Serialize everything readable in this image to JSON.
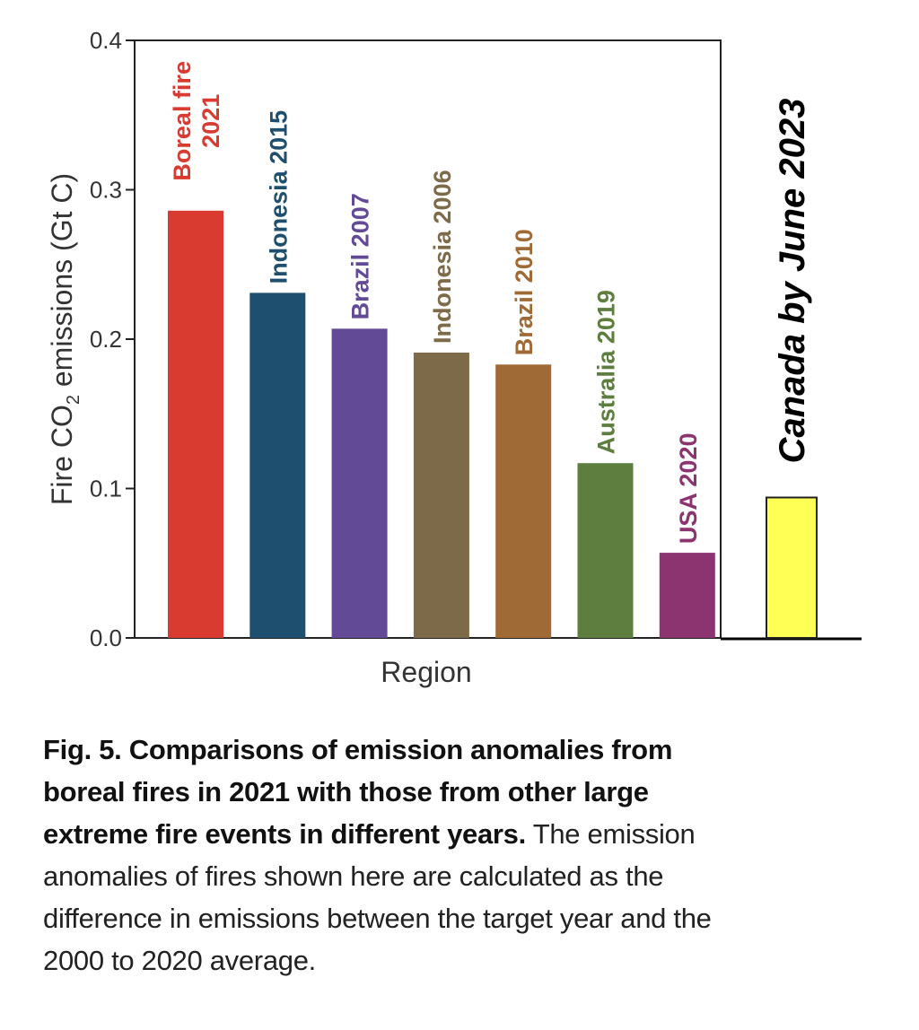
{
  "chart_data": {
    "type": "bar",
    "title": "",
    "xlabel": "Region",
    "ylabel_prefix": "Fire CO",
    "ylabel_sub": "2",
    "ylabel_suffix": " emissions (Gt C)",
    "ylim": [
      0,
      0.4
    ],
    "yticks": [
      {
        "value": 0.0,
        "label": "0.0"
      },
      {
        "value": 0.1,
        "label": "0.1"
      },
      {
        "value": 0.2,
        "label": "0.2"
      },
      {
        "value": 0.3,
        "label": "0.3"
      },
      {
        "value": 0.4,
        "label": "0.4"
      }
    ],
    "bars": [
      {
        "label_lines": [
          "Boreal fire",
          "2021"
        ],
        "value": 0.286,
        "color": "#d93b30",
        "label_color": "#d93b30"
      },
      {
        "label_lines": [
          "Indonesia 2015"
        ],
        "value": 0.231,
        "color": "#1f4f6e",
        "label_color": "#1f4f6e"
      },
      {
        "label_lines": [
          "Brazil 2007"
        ],
        "value": 0.207,
        "color": "#624a96",
        "label_color": "#624a96"
      },
      {
        "label_lines": [
          "Indonesia 2006"
        ],
        "value": 0.191,
        "color": "#7d6a48",
        "label_color": "#7d6a48"
      },
      {
        "label_lines": [
          "Brazil 2010"
        ],
        "value": 0.183,
        "color": "#a06a36",
        "label_color": "#a06a36"
      },
      {
        "label_lines": [
          "Australia 2019"
        ],
        "value": 0.117,
        "color": "#5e7e40",
        "label_color": "#5e7e40"
      },
      {
        "label_lines": [
          "USA 2020"
        ],
        "value": 0.057,
        "color": "#8c3470",
        "label_color": "#8c3470"
      }
    ],
    "annotation_bar": {
      "label": "Canada by June 2023",
      "value": 0.094,
      "color": "#ffff55",
      "border_color": "#222222"
    }
  },
  "caption": {
    "bold": "Fig. 5. Comparisons of emission anomalies from boreal fires in 2021 with those from other large extreme fire events in different years.",
    "text": " The emission anomalies of fires shown here are calculated as the difference in emissions between the target year and the 2000 to 2020 average."
  }
}
